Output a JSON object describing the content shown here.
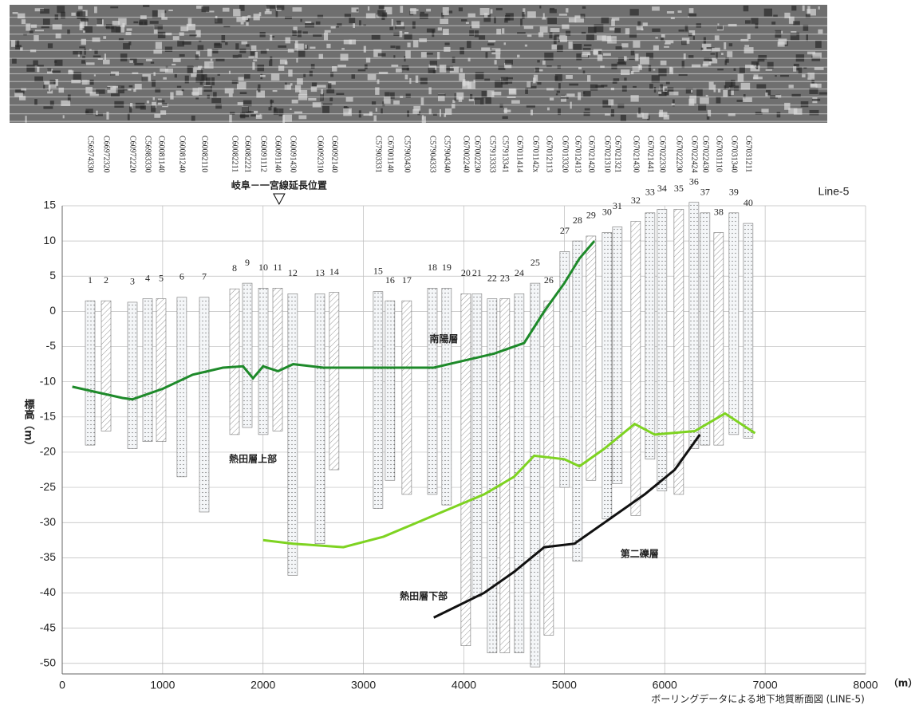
{
  "chart_data": {
    "type": "section",
    "title": "Line-5",
    "caption": "ボーリングデータによる地下地質断面図 (LINE-5)",
    "y_label": "標高（m）",
    "x_unit": "（m）",
    "marker": {
      "label": "岐阜－一宮線延長位置",
      "x": 2160
    },
    "xlim": [
      0,
      8000
    ],
    "ylim": [
      -51.5,
      15
    ],
    "xticks": [
      0,
      1000,
      2000,
      3000,
      4000,
      5000,
      6000,
      7000,
      8000
    ],
    "yticks": [
      15,
      10,
      5,
      0,
      -5,
      -10,
      -15,
      -20,
      -25,
      -30,
      -35,
      -40,
      -45,
      -50
    ],
    "grid": true,
    "boreholes": {
      "labels": [
        "1",
        "2",
        "3",
        "4",
        "5",
        "6",
        "7",
        "8",
        "9",
        "10",
        "11",
        "12",
        "13",
        "14",
        "15",
        "16",
        "17",
        "18",
        "19",
        "20",
        "21",
        "22",
        "23",
        "24",
        "25",
        "26",
        "27",
        "28",
        "29",
        "30",
        "31",
        "32",
        "33",
        "34",
        "35",
        "36",
        "37",
        "38",
        "39",
        "40"
      ],
      "ids": [
        "C56974330",
        "C66972320",
        "C60972220",
        "C56983330",
        "C60081140",
        "C60081240",
        "C60082110",
        "C60082211",
        "C60082221",
        "C60091112",
        "C60091140",
        "C60091430",
        "C60092310",
        "C60092140",
        "C57903331",
        "C67001140",
        "C57903430",
        "C57904333",
        "C57904340",
        "C67002240",
        "C67002230",
        "C57913333",
        "C57913341",
        "C67011414",
        "C6701142x",
        "C67012113",
        "C67013320",
        "C67012413",
        "C67021420",
        "C67021310",
        "C67021321",
        "C67021430",
        "C67021441",
        "C67022330",
        "C67022230",
        "C67022424",
        "C67022430",
        "C67031110",
        "C67031340",
        "C67031211"
      ],
      "x": [
        278,
        437,
        699,
        850,
        985,
        1191,
        1414,
        1716,
        1843,
        2002,
        2145,
        2295,
        2566,
        2708,
        3145,
        3264,
        3431,
        3686,
        3828,
        4019,
        4130,
        4281,
        4408,
        4551,
        4710,
        4845,
        5004,
        5131,
        5266,
        5425,
        5528,
        5711,
        5854,
        5973,
        6140,
        6291,
        6402,
        6537,
        6688,
        6831
      ],
      "top": [
        1.5,
        1.5,
        1.3,
        1.8,
        1.8,
        2,
        2,
        3.2,
        4,
        3.3,
        3.3,
        2.5,
        2.5,
        2.7,
        2.8,
        1.5,
        1.5,
        3.3,
        3.3,
        2.5,
        2.5,
        1.8,
        1.8,
        2.5,
        4,
        1.5,
        8.5,
        10,
        10.7,
        11.2,
        12,
        12.8,
        14,
        14.5,
        14.5,
        15.5,
        14,
        11.2,
        14,
        12.5
      ],
      "bottom": [
        -19,
        -17,
        -19.5,
        -18.5,
        -18.5,
        -23.5,
        -28.5,
        -17.5,
        -16.5,
        -17.5,
        -17,
        -37.5,
        -33,
        -22.5,
        -28,
        -24,
        -26,
        -26,
        -27.5,
        -47.5,
        -40.5,
        -48.5,
        -48.5,
        -48.5,
        -50.5,
        -46,
        -25,
        -35.5,
        -24,
        -29.5,
        -24.5,
        -29,
        -21,
        -25.5,
        -26,
        -19.5,
        -19,
        -19,
        -17.5,
        -18
      ]
    },
    "series": [
      {
        "name": "南陽層",
        "color": "#1e8a2a",
        "x": [
          100,
          600,
          700,
          1000,
          1300,
          1600,
          1800,
          1900,
          2000,
          2150,
          2300,
          2600,
          3200,
          3700,
          4000,
          4300,
          4600,
          4800,
          5000,
          5150,
          5300
        ],
        "values": [
          -10.7,
          -12.3,
          -12.5,
          -11,
          -9,
          -8,
          -7.8,
          -9.5,
          -7.8,
          -8.5,
          -7.5,
          -8,
          -8,
          -8,
          -7,
          -6,
          -4.5,
          0,
          4,
          7.5,
          10
        ]
      },
      {
        "name": "熱田層上部",
        "color": "#7ed321",
        "x": [
          2000,
          2300,
          2800,
          3200,
          3700,
          4200,
          4500,
          4700,
          5000,
          5150,
          5400,
          5700,
          5900,
          6300,
          6600,
          6900
        ],
        "values": [
          -32.5,
          -33,
          -33.5,
          -32,
          -29,
          -26,
          -23.5,
          -20.5,
          -21,
          -22,
          -19.5,
          -16,
          -17.5,
          -17,
          -14.5,
          -17.3
        ]
      },
      {
        "name": "第二礫層",
        "color": "#111111",
        "x": [
          3700,
          4200,
          4500,
          4800,
          5100,
          5200,
          5500,
          5800,
          6100,
          6350
        ],
        "values": [
          -43.5,
          -40,
          -37,
          -33.5,
          -33,
          -32,
          -29,
          -26,
          -22.5,
          -17.5
        ]
      }
    ],
    "annotations": [
      {
        "text": "南陽層",
        "x": 3800,
        "y": -4
      },
      {
        "text": "熱田層上部",
        "x": 1900,
        "y": -21
      },
      {
        "text": "熱田層下部",
        "x": 3600,
        "y": -40.5
      },
      {
        "text": "第二礫層",
        "x": 5750,
        "y": -34.5
      }
    ]
  }
}
